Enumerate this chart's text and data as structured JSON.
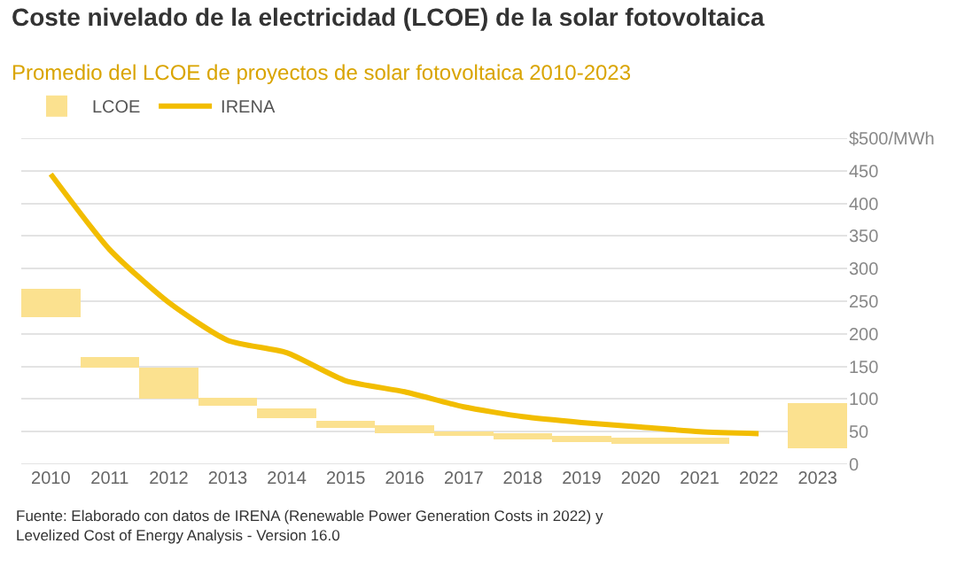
{
  "chart_data": {
    "type": "bar",
    "title": "Coste nivelado de la electricidad (LCOE) de la solar fotovoltaica",
    "subtitle": "Promedio del LCOE de proyectos de solar fotovoltaica 2010-2023",
    "categories": [
      "2010",
      "2011",
      "2012",
      "2013",
      "2014",
      "2015",
      "2016",
      "2017",
      "2018",
      "2019",
      "2020",
      "2021",
      "2022",
      "2023"
    ],
    "series": [
      {
        "name": "LCOE",
        "color": "#fbe18f",
        "base": [
          226,
          148,
          100,
          90,
          71,
          56,
          48,
          44,
          38,
          34,
          31,
          31,
          null,
          24
        ],
        "values": [
          43,
          17,
          48,
          12,
          14,
          11,
          12,
          6,
          9,
          9,
          10,
          10,
          null,
          70
        ]
      },
      {
        "type": "line",
        "name": "IRENA",
        "color": "#f2bd00",
        "values": [
          445,
          329,
          248,
          190,
          171,
          128,
          111,
          88,
          73,
          64,
          57,
          50,
          47,
          null
        ]
      }
    ],
    "ylim": [
      0,
      500
    ],
    "yticks": [
      0,
      50,
      100,
      150,
      200,
      250,
      300,
      350,
      400,
      450,
      {
        "value": 500,
        "label": "$500/MWh"
      }
    ],
    "grid": "y",
    "legend": "top left",
    "marker": "none",
    "annotations": [
      "Fuente: Elaborado con datos de IRENA (Renewable Power Generation Costs in 2022) y\nLevelized Cost of Energy Analysis - Version 16.0"
    ]
  }
}
